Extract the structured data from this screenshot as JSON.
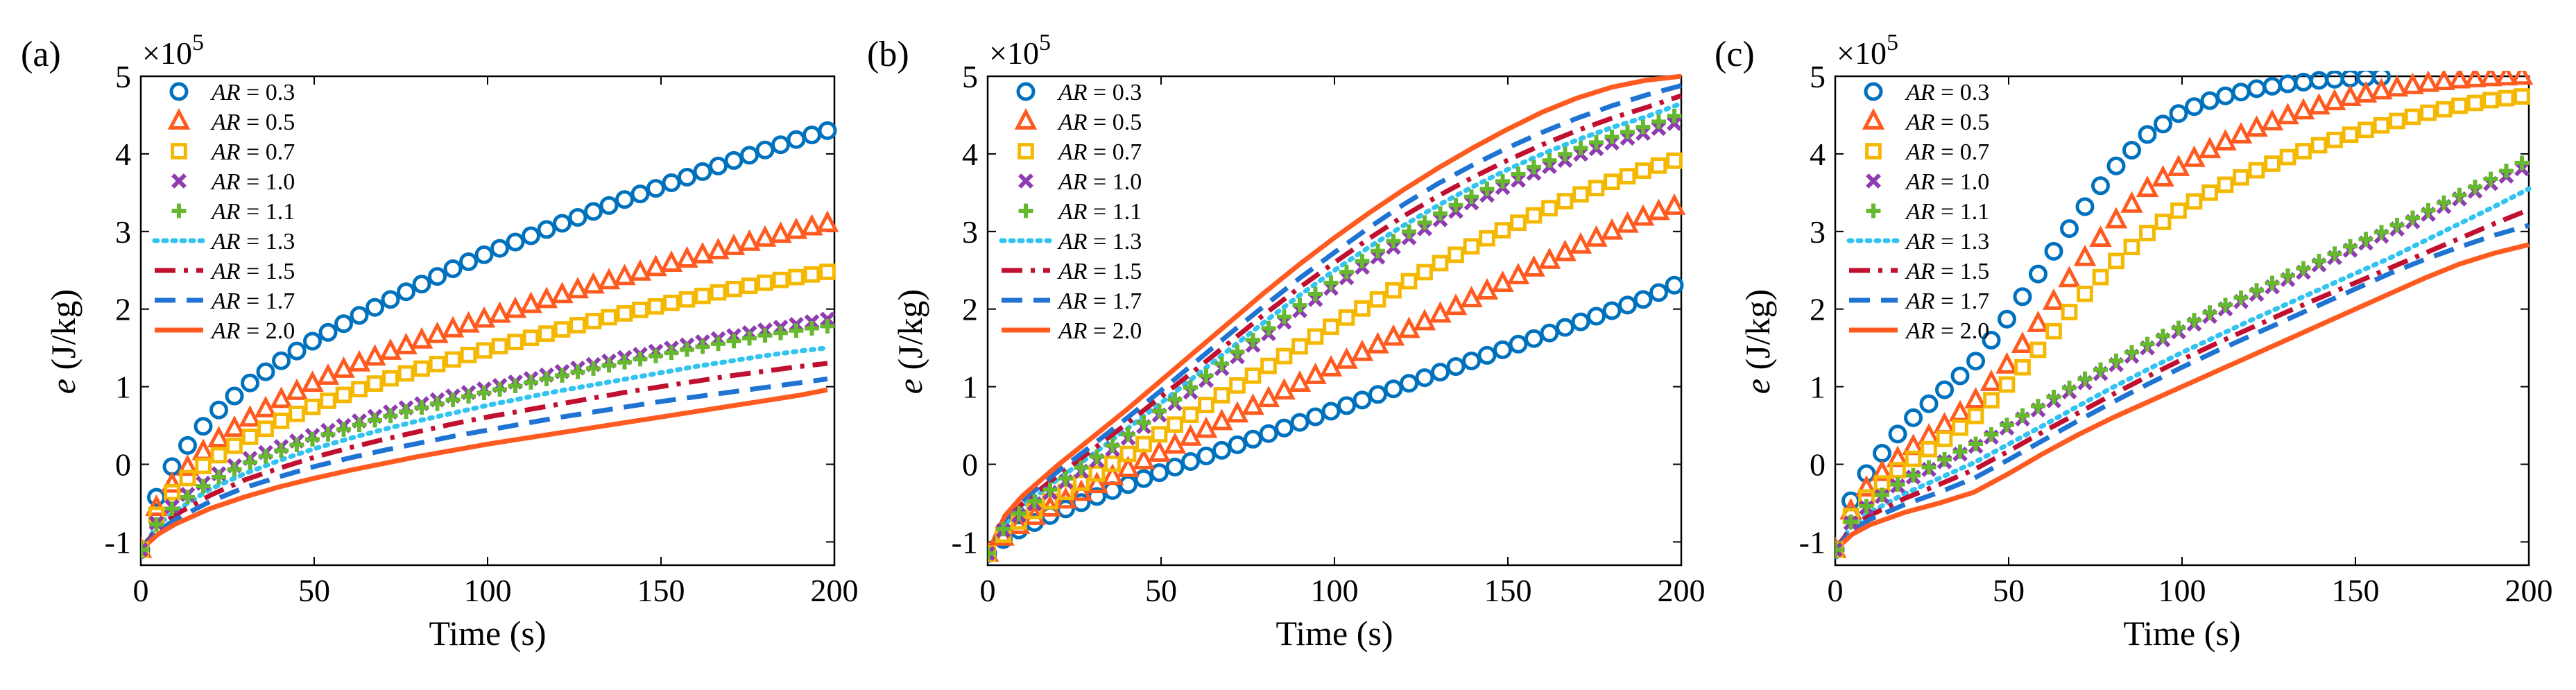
{
  "figure": {
    "panels": [
      "(a)",
      "(b)",
      "(c)"
    ]
  },
  "colors": {
    "AR=0.3": "#0072BD",
    "AR=0.5": "#FF5A1F",
    "AR=0.7": "#F5B800",
    "AR=1.0": "#8E3CB0",
    "AR=1.1": "#66B82E",
    "AR=1.3": "#33C3F0",
    "AR=1.5": "#C00F2F",
    "AR=1.7": "#1F73D2",
    "AR=2.0": "#FF5A1F"
  },
  "chart_data": [
    {
      "panel": "(a)",
      "type": "line",
      "xlabel": "Time (s)",
      "ylabel": "e (J/kg)",
      "multiplier": "×10^5",
      "xlim": [
        0,
        200
      ],
      "ylim": [
        -1.3,
        5
      ],
      "xticks": [
        0,
        50,
        100,
        150,
        200
      ],
      "yticks": [
        -1,
        0,
        1,
        2,
        3,
        4,
        5
      ],
      "legend_location": "top-left",
      "x": [
        0,
        5,
        10,
        20,
        30,
        40,
        50,
        60,
        70,
        80,
        90,
        100,
        110,
        120,
        130,
        140,
        150,
        160,
        170,
        180,
        190,
        198
      ],
      "series": [
        {
          "name": "AR = 0.3",
          "style": "circle",
          "values": [
            -1.1,
            -0.35,
            0.05,
            0.6,
            1.0,
            1.32,
            1.6,
            1.85,
            2.08,
            2.3,
            2.52,
            2.72,
            2.9,
            3.08,
            3.25,
            3.42,
            3.58,
            3.74,
            3.9,
            4.05,
            4.2,
            4.3
          ]
        },
        {
          "name": "AR = 0.5",
          "style": "triangle",
          "values": [
            -1.1,
            -0.5,
            -0.2,
            0.25,
            0.55,
            0.82,
            1.05,
            1.25,
            1.42,
            1.58,
            1.74,
            1.88,
            2.02,
            2.16,
            2.3,
            2.42,
            2.55,
            2.67,
            2.79,
            2.91,
            3.02,
            3.1
          ]
        },
        {
          "name": "AR = 0.7",
          "style": "square",
          "values": [
            -1.1,
            -0.6,
            -0.3,
            0.05,
            0.32,
            0.55,
            0.75,
            0.92,
            1.08,
            1.22,
            1.35,
            1.48,
            1.6,
            1.72,
            1.84,
            1.95,
            2.05,
            2.15,
            2.25,
            2.34,
            2.42,
            2.48
          ]
        },
        {
          "name": "AR = 1.0",
          "style": "x",
          "values": [
            -1.1,
            -0.72,
            -0.5,
            -0.18,
            0.05,
            0.22,
            0.38,
            0.52,
            0.65,
            0.77,
            0.88,
            0.98,
            1.08,
            1.18,
            1.28,
            1.38,
            1.47,
            1.56,
            1.65,
            1.73,
            1.81,
            1.87
          ]
        },
        {
          "name": "AR = 1.1",
          "style": "plus",
          "values": [
            -1.1,
            -0.74,
            -0.53,
            -0.22,
            0.0,
            0.17,
            0.33,
            0.47,
            0.6,
            0.72,
            0.83,
            0.93,
            1.03,
            1.13,
            1.23,
            1.32,
            1.41,
            1.5,
            1.58,
            1.66,
            1.73,
            1.78
          ]
        },
        {
          "name": "AR = 1.3",
          "style": "dotted",
          "values": [
            -1.1,
            -0.78,
            -0.6,
            -0.32,
            -0.12,
            0.05,
            0.2,
            0.33,
            0.45,
            0.56,
            0.66,
            0.76,
            0.85,
            0.94,
            1.02,
            1.1,
            1.18,
            1.26,
            1.33,
            1.4,
            1.46,
            1.5
          ]
        },
        {
          "name": "AR = 1.5",
          "style": "dashdot",
          "values": [
            -1.1,
            -0.82,
            -0.65,
            -0.4,
            -0.2,
            -0.05,
            0.09,
            0.21,
            0.32,
            0.42,
            0.52,
            0.61,
            0.69,
            0.77,
            0.85,
            0.93,
            1.0,
            1.07,
            1.14,
            1.2,
            1.26,
            1.3
          ]
        },
        {
          "name": "AR = 1.7",
          "style": "dashed",
          "values": [
            -1.1,
            -0.86,
            -0.71,
            -0.48,
            -0.3,
            -0.16,
            -0.03,
            0.08,
            0.18,
            0.27,
            0.36,
            0.44,
            0.52,
            0.6,
            0.67,
            0.74,
            0.81,
            0.87,
            0.93,
            0.99,
            1.05,
            1.1
          ]
        },
        {
          "name": "AR = 2.0",
          "style": "solid",
          "values": [
            -1.1,
            -0.9,
            -0.77,
            -0.57,
            -0.42,
            -0.29,
            -0.18,
            -0.08,
            0.01,
            0.1,
            0.18,
            0.26,
            0.33,
            0.4,
            0.47,
            0.54,
            0.61,
            0.68,
            0.75,
            0.82,
            0.89,
            0.96
          ]
        }
      ]
    },
    {
      "panel": "(b)",
      "type": "line",
      "xlabel": "Time (s)",
      "ylabel": "e (J/kg)",
      "multiplier": "×10^5",
      "xlim": [
        0,
        200
      ],
      "ylim": [
        -1.3,
        5
      ],
      "xticks": [
        0,
        50,
        100,
        150,
        200
      ],
      "yticks": [
        -1,
        0,
        1,
        2,
        3,
        4,
        5
      ],
      "legend_location": "top-left",
      "x": [
        0,
        5,
        10,
        20,
        30,
        40,
        50,
        60,
        70,
        80,
        90,
        100,
        110,
        120,
        130,
        140,
        150,
        160,
        170,
        180,
        190,
        200
      ],
      "series": [
        {
          "name": "AR = 0.3",
          "style": "circle",
          "values": [
            -1.15,
            -0.95,
            -0.82,
            -0.62,
            -0.44,
            -0.27,
            -0.1,
            0.06,
            0.22,
            0.38,
            0.54,
            0.7,
            0.86,
            1.02,
            1.18,
            1.34,
            1.5,
            1.66,
            1.82,
            1.98,
            2.14,
            2.35
          ]
        },
        {
          "name": "AR = 0.5",
          "style": "triangle",
          "values": [
            -1.15,
            -0.92,
            -0.76,
            -0.52,
            -0.3,
            -0.07,
            0.15,
            0.38,
            0.6,
            0.82,
            1.04,
            1.26,
            1.48,
            1.7,
            1.92,
            2.14,
            2.36,
            2.58,
            2.8,
            3.0,
            3.2,
            3.35
          ]
        },
        {
          "name": "AR = 0.7",
          "style": "square",
          "values": [
            -1.15,
            -0.88,
            -0.7,
            -0.42,
            -0.16,
            0.12,
            0.4,
            0.68,
            0.96,
            1.24,
            1.52,
            1.8,
            2.06,
            2.32,
            2.58,
            2.82,
            3.05,
            3.26,
            3.46,
            3.64,
            3.8,
            3.94
          ]
        },
        {
          "name": "AR = 1.0",
          "style": "x",
          "values": [
            -1.15,
            -0.82,
            -0.62,
            -0.3,
            0.0,
            0.32,
            0.65,
            0.98,
            1.32,
            1.65,
            1.98,
            2.3,
            2.6,
            2.88,
            3.14,
            3.38,
            3.6,
            3.8,
            3.98,
            4.14,
            4.28,
            4.42
          ]
        },
        {
          "name": "AR = 1.1",
          "style": "plus",
          "values": [
            -1.15,
            -0.8,
            -0.59,
            -0.26,
            0.05,
            0.37,
            0.7,
            1.04,
            1.38,
            1.72,
            2.05,
            2.37,
            2.68,
            2.96,
            3.22,
            3.46,
            3.68,
            3.88,
            4.06,
            4.22,
            4.36,
            4.52
          ]
        },
        {
          "name": "AR = 1.3",
          "style": "dotted",
          "values": [
            -1.15,
            -0.77,
            -0.55,
            -0.2,
            0.12,
            0.45,
            0.79,
            1.14,
            1.49,
            1.84,
            2.18,
            2.5,
            2.8,
            3.08,
            3.34,
            3.58,
            3.8,
            4.0,
            4.18,
            4.34,
            4.48,
            4.65
          ]
        },
        {
          "name": "AR = 1.5",
          "style": "dashdot",
          "values": [
            -1.15,
            -0.74,
            -0.51,
            -0.15,
            0.18,
            0.52,
            0.87,
            1.22,
            1.58,
            1.94,
            2.28,
            2.6,
            2.91,
            3.2,
            3.46,
            3.7,
            3.92,
            4.12,
            4.3,
            4.46,
            4.6,
            4.75
          ]
        },
        {
          "name": "AR = 1.7",
          "style": "dashed",
          "values": [
            -1.15,
            -0.71,
            -0.47,
            -0.1,
            0.24,
            0.59,
            0.95,
            1.32,
            1.69,
            2.05,
            2.4,
            2.73,
            3.05,
            3.35,
            3.62,
            3.86,
            4.08,
            4.28,
            4.46,
            4.62,
            4.76,
            4.88
          ]
        },
        {
          "name": "AR = 2.0",
          "style": "solid",
          "values": [
            -1.15,
            -0.66,
            -0.41,
            -0.02,
            0.34,
            0.7,
            1.08,
            1.46,
            1.84,
            2.22,
            2.58,
            2.92,
            3.24,
            3.54,
            3.82,
            4.08,
            4.32,
            4.54,
            4.72,
            4.86,
            4.95,
            5.0
          ]
        }
      ]
    },
    {
      "panel": "(c)",
      "type": "line",
      "xlabel": "Time (s)",
      "ylabel": "e (J/kg)",
      "multiplier": "×10^5",
      "xlim": [
        0,
        200
      ],
      "ylim": [
        -1.3,
        5
      ],
      "xticks": [
        0,
        50,
        100,
        150,
        200
      ],
      "yticks": [
        -1,
        0,
        1,
        2,
        3,
        4,
        5
      ],
      "legend_location": "top-left",
      "x": [
        0,
        5,
        10,
        20,
        30,
        40,
        50,
        60,
        70,
        80,
        90,
        100,
        110,
        120,
        130,
        140,
        150,
        160,
        170,
        180,
        190,
        200
      ],
      "series": [
        {
          "name": "AR = 0.3",
          "style": "circle",
          "values": [
            -1.1,
            -0.4,
            -0.05,
            0.5,
            0.9,
            1.3,
            1.9,
            2.55,
            3.2,
            3.8,
            4.25,
            4.55,
            4.72,
            4.83,
            4.9,
            4.95,
            4.98,
            5.0,
            null,
            null,
            null,
            null
          ]
        },
        {
          "name": "AR = 0.5",
          "style": "triangle",
          "values": [
            -1.1,
            -0.55,
            -0.25,
            0.15,
            0.45,
            0.8,
            1.3,
            1.9,
            2.55,
            3.1,
            3.55,
            3.85,
            4.1,
            4.3,
            4.48,
            4.62,
            4.74,
            4.83,
            4.9,
            4.95,
            4.98,
            5.0
          ]
        },
        {
          "name": "AR = 0.7",
          "style": "square",
          "values": [
            -1.1,
            -0.62,
            -0.38,
            0.0,
            0.28,
            0.6,
            1.05,
            1.55,
            2.1,
            2.58,
            2.98,
            3.3,
            3.55,
            3.76,
            3.95,
            4.12,
            4.27,
            4.4,
            4.52,
            4.62,
            4.7,
            4.75
          ]
        },
        {
          "name": "AR = 1.0",
          "style": "x",
          "values": [
            -1.1,
            -0.72,
            -0.52,
            -0.22,
            0.0,
            0.22,
            0.48,
            0.74,
            1.0,
            1.26,
            1.5,
            1.73,
            1.95,
            2.16,
            2.37,
            2.58,
            2.79,
            2.99,
            3.2,
            3.42,
            3.64,
            3.85
          ]
        },
        {
          "name": "AR = 1.1",
          "style": "plus",
          "values": [
            -1.1,
            -0.7,
            -0.5,
            -0.2,
            0.03,
            0.25,
            0.52,
            0.79,
            1.05,
            1.31,
            1.55,
            1.78,
            2.0,
            2.21,
            2.42,
            2.63,
            2.84,
            3.04,
            3.25,
            3.47,
            3.7,
            3.93
          ]
        },
        {
          "name": "AR = 1.3",
          "style": "dotted",
          "values": [
            -1.1,
            -0.78,
            -0.62,
            -0.38,
            -0.18,
            0.02,
            0.26,
            0.5,
            0.75,
            0.99,
            1.22,
            1.44,
            1.65,
            1.86,
            2.06,
            2.26,
            2.46,
            2.66,
            2.88,
            3.1,
            3.32,
            3.55
          ]
        },
        {
          "name": "AR = 1.5",
          "style": "dashdot",
          "values": [
            -1.1,
            -0.8,
            -0.66,
            -0.44,
            -0.26,
            -0.07,
            0.17,
            0.42,
            0.66,
            0.9,
            1.13,
            1.35,
            1.56,
            1.76,
            1.96,
            2.15,
            2.34,
            2.53,
            2.72,
            2.91,
            3.1,
            3.28
          ]
        },
        {
          "name": "AR = 1.7",
          "style": "dashed",
          "values": [
            -1.1,
            -0.84,
            -0.71,
            -0.52,
            -0.36,
            -0.18,
            0.06,
            0.31,
            0.56,
            0.8,
            1.03,
            1.25,
            1.46,
            1.66,
            1.86,
            2.06,
            2.26,
            2.46,
            2.64,
            2.8,
            2.95,
            3.08
          ]
        },
        {
          "name": "AR = 2.0",
          "style": "solid",
          "values": [
            -1.1,
            -0.9,
            -0.78,
            -0.62,
            -0.5,
            -0.36,
            -0.12,
            0.14,
            0.38,
            0.6,
            0.8,
            1.0,
            1.2,
            1.4,
            1.6,
            1.8,
            2.0,
            2.2,
            2.4,
            2.58,
            2.72,
            2.83
          ]
        }
      ]
    }
  ]
}
